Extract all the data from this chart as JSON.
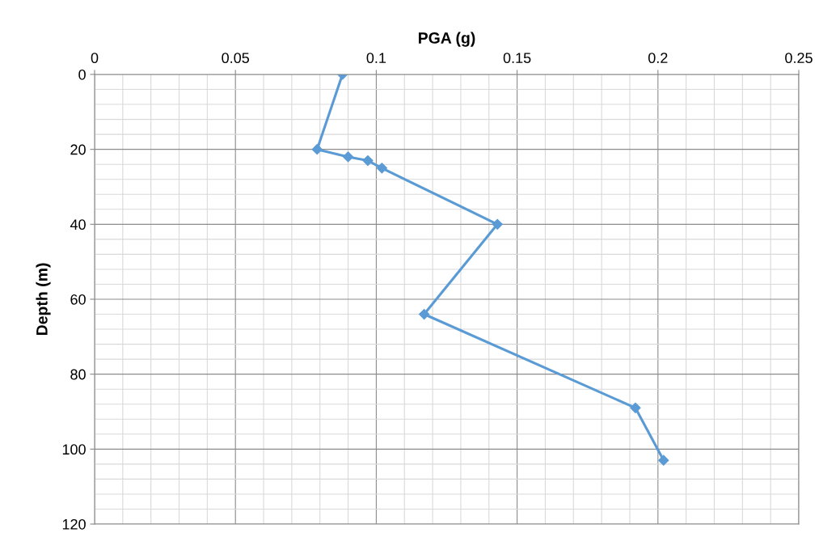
{
  "chart_data": {
    "type": "line",
    "xlabel": "PGA (g)",
    "ylabel": "Depth (m)",
    "x": [
      0.088,
      0.079,
      0.09,
      0.097,
      0.102,
      0.143,
      0.117,
      0.192,
      0.202
    ],
    "series": [
      {
        "color": "#5b9bd5",
        "values": [
          0,
          20,
          22,
          23,
          25,
          40,
          64,
          89,
          103
        ]
      }
    ],
    "xlim": [
      0,
      0.25
    ],
    "xticks": [
      0,
      0.05,
      0.1,
      0.15,
      0.2,
      0.25
    ],
    "ylim": [
      120,
      0
    ],
    "yticks": [
      0,
      20,
      40,
      60,
      80,
      100,
      120
    ],
    "grid": true,
    "marker": "diamond",
    "line_style": "solid"
  }
}
